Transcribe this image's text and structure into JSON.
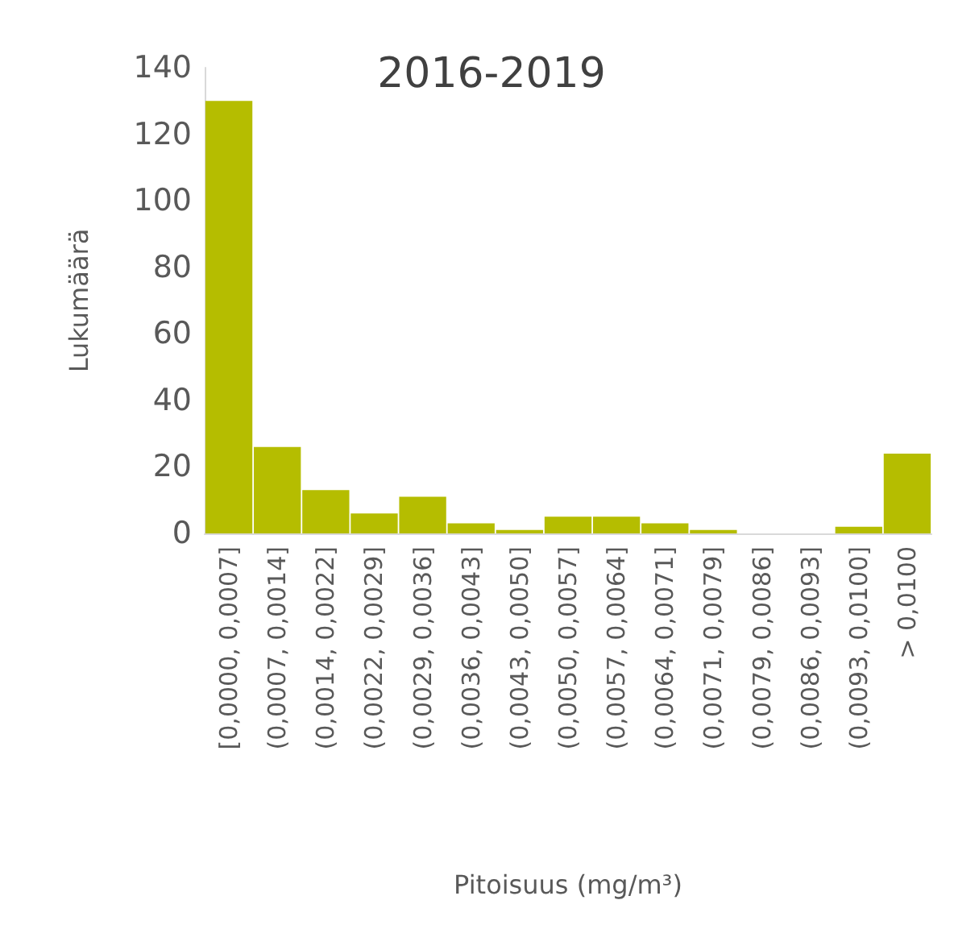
{
  "chart_data": {
    "type": "bar",
    "title": "2016-2019",
    "xlabel": "Pitoisuus (mg/m³)",
    "ylabel": "Lukumäärä",
    "categories": [
      "[0,0000, 0,0007]",
      "(0,0007, 0,0014]",
      "(0,0014, 0,0022]",
      "(0,0022, 0,0029]",
      "(0,0029, 0,0036]",
      "(0,0036, 0,0043]",
      "(0,0043, 0,0050]",
      "(0,0050, 0,0057]",
      "(0,0057, 0,0064]",
      "(0,0064, 0,0071]",
      "(0,0071, 0,0079]",
      "(0,0079, 0,0086]",
      "(0,0086, 0,0093]",
      "(0,0093, 0,0100]",
      "> 0,0100"
    ],
    "values": [
      130,
      26,
      13,
      6,
      11,
      3,
      1,
      5,
      5,
      3,
      1,
      0,
      0,
      2,
      24
    ],
    "color": "#b5bd00",
    "ylim": [
      0,
      140
    ],
    "yticks": [
      0,
      20,
      40,
      60,
      80,
      100,
      120,
      140
    ],
    "grid": false
  }
}
